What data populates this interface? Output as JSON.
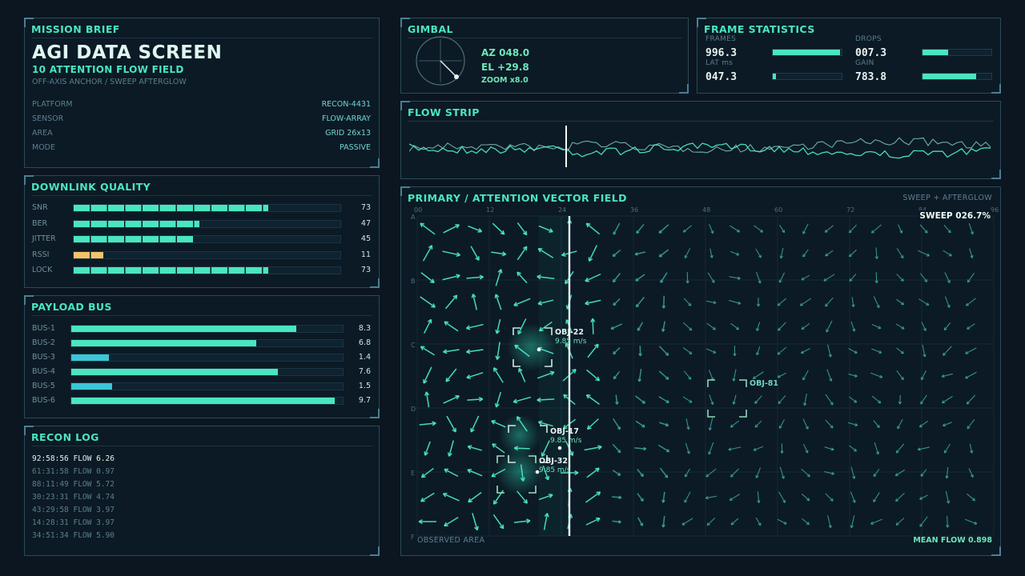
{
  "mission_brief": {
    "title": "MISSION BRIEF",
    "headline": "AGI DATA SCREEN",
    "subtitle": "10 ATTENTION FLOW FIELD",
    "caption": "OFF-AXIS ANCHOR / SWEEP AFTERGLOW",
    "fields": [
      {
        "key": "PLATFORM",
        "value": "RECON-4431"
      },
      {
        "key": "SENSOR",
        "value": "FLOW-ARRAY"
      },
      {
        "key": "AREA",
        "value": "GRID 26x13"
      },
      {
        "key": "MODE",
        "value": "PASSIVE"
      }
    ]
  },
  "downlink": {
    "title": "DOWNLINK QUALITY",
    "rows": [
      {
        "label": "SNR",
        "value": "73",
        "level": 0.73,
        "color": "#49e6c0"
      },
      {
        "label": "BER",
        "value": "47",
        "level": 0.47,
        "color": "#49e6c0"
      },
      {
        "label": "JITTER",
        "value": "45",
        "level": 0.45,
        "color": "#49e6c0"
      },
      {
        "label": "RSSI",
        "value": "11",
        "level": 0.11,
        "color": "#f2c46a"
      },
      {
        "label": "LOCK",
        "value": "73",
        "level": 0.73,
        "color": "#49e6c0"
      }
    ]
  },
  "payload": {
    "title": "PAYLOAD BUS",
    "rows": [
      {
        "label": "BUS-1",
        "value": "8.3",
        "level": 0.83,
        "color": "#49e6c0"
      },
      {
        "label": "BUS-2",
        "value": "6.8",
        "level": 0.68,
        "color": "#49e6c0"
      },
      {
        "label": "BUS-3",
        "value": "1.4",
        "level": 0.14,
        "color": "#3cc6d6"
      },
      {
        "label": "BUS-4",
        "value": "7.6",
        "level": 0.76,
        "color": "#49e6c0"
      },
      {
        "label": "BUS-5",
        "value": "1.5",
        "level": 0.15,
        "color": "#3cc6d6"
      },
      {
        "label": "BUS-6",
        "value": "9.7",
        "level": 0.97,
        "color": "#49e6c0"
      }
    ]
  },
  "recon_log": {
    "title": "RECON LOG",
    "lines": [
      "92:58:56 FLOW 6.26",
      "61:31:58 FLOW 0.97",
      "88:11:49 FLOW 5.72",
      "30:23:31 FLOW 4.74",
      "43:29:58 FLOW 3.97",
      "14:28:31 FLOW 3.97",
      "34:51:34 FLOW 5.90"
    ]
  },
  "gimbal": {
    "title": "GIMBAL",
    "az": "AZ 048.0",
    "el": "EL +29.8",
    "zoom": "ZOOM x8.0"
  },
  "frame_stats": {
    "title": "FRAME STATISTICS",
    "items": [
      {
        "label": "FRAMES",
        "value": "996.3",
        "level": 0.98
      },
      {
        "label": "DROPS",
        "value": "007.3",
        "level": 0.37
      },
      {
        "label": "LAT ms",
        "value": "047.3",
        "level": 0.05
      },
      {
        "label": "GAIN",
        "value": "783.8",
        "level": 0.78
      }
    ]
  },
  "flow_strip": {
    "title": "FLOW STRIP"
  },
  "primary": {
    "title": "PRIMARY / ATTENTION VECTOR FIELD",
    "mode": "SWEEP + AFTERGLOW",
    "sweep": "SWEEP 026.7%",
    "footer_left": "OBSERVED AREA",
    "footer_right": "MEAN FLOW 0.898",
    "col_labels": [
      "00",
      "12",
      "24",
      "36",
      "48",
      "60",
      "72",
      "84",
      "96"
    ],
    "row_labels": [
      "A",
      "B",
      "C",
      "D",
      "E",
      "F"
    ],
    "targets": [
      {
        "id": "OBJ-22",
        "speed": "9.85 m/s"
      },
      {
        "id": "OBJ-81",
        "speed": ""
      },
      {
        "id": "OBJ-17",
        "speed": "9.85 m/s"
      },
      {
        "id": "OBJ-32",
        "speed": "9.85 m/s"
      }
    ]
  },
  "colors": {
    "accent": "#49e6c0",
    "warn": "#f2c46a",
    "background": "#0b1620"
  }
}
